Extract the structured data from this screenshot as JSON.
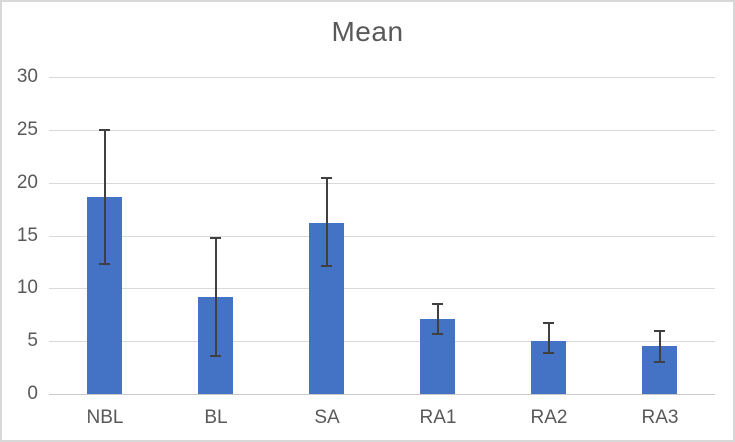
{
  "chart_data": {
    "type": "bar",
    "title": "Mean",
    "categories": [
      "NBL",
      "BL",
      "SA",
      "RA1",
      "RA2",
      "RA3"
    ],
    "values": [
      18.6,
      9.2,
      16.2,
      7.1,
      5.0,
      4.5
    ],
    "error_low": [
      12.3,
      3.6,
      12.1,
      5.7,
      3.9,
      3.0
    ],
    "error_high": [
      25.0,
      14.8,
      20.4,
      8.5,
      6.7,
      6.0
    ],
    "ylim": [
      0,
      30
    ],
    "yticks": [
      0,
      5,
      10,
      15,
      20,
      25,
      30
    ],
    "grid": true,
    "legend": "none",
    "bar_color": "#4472C4",
    "error_bar_color": "#404040",
    "gridline_color": "#D9D9D9",
    "axis_line_color": "#C9C9C9",
    "label_color": "#595959",
    "title_color": "#595959",
    "background": "#FFFFFF",
    "border_color": "#D8D8D8"
  }
}
